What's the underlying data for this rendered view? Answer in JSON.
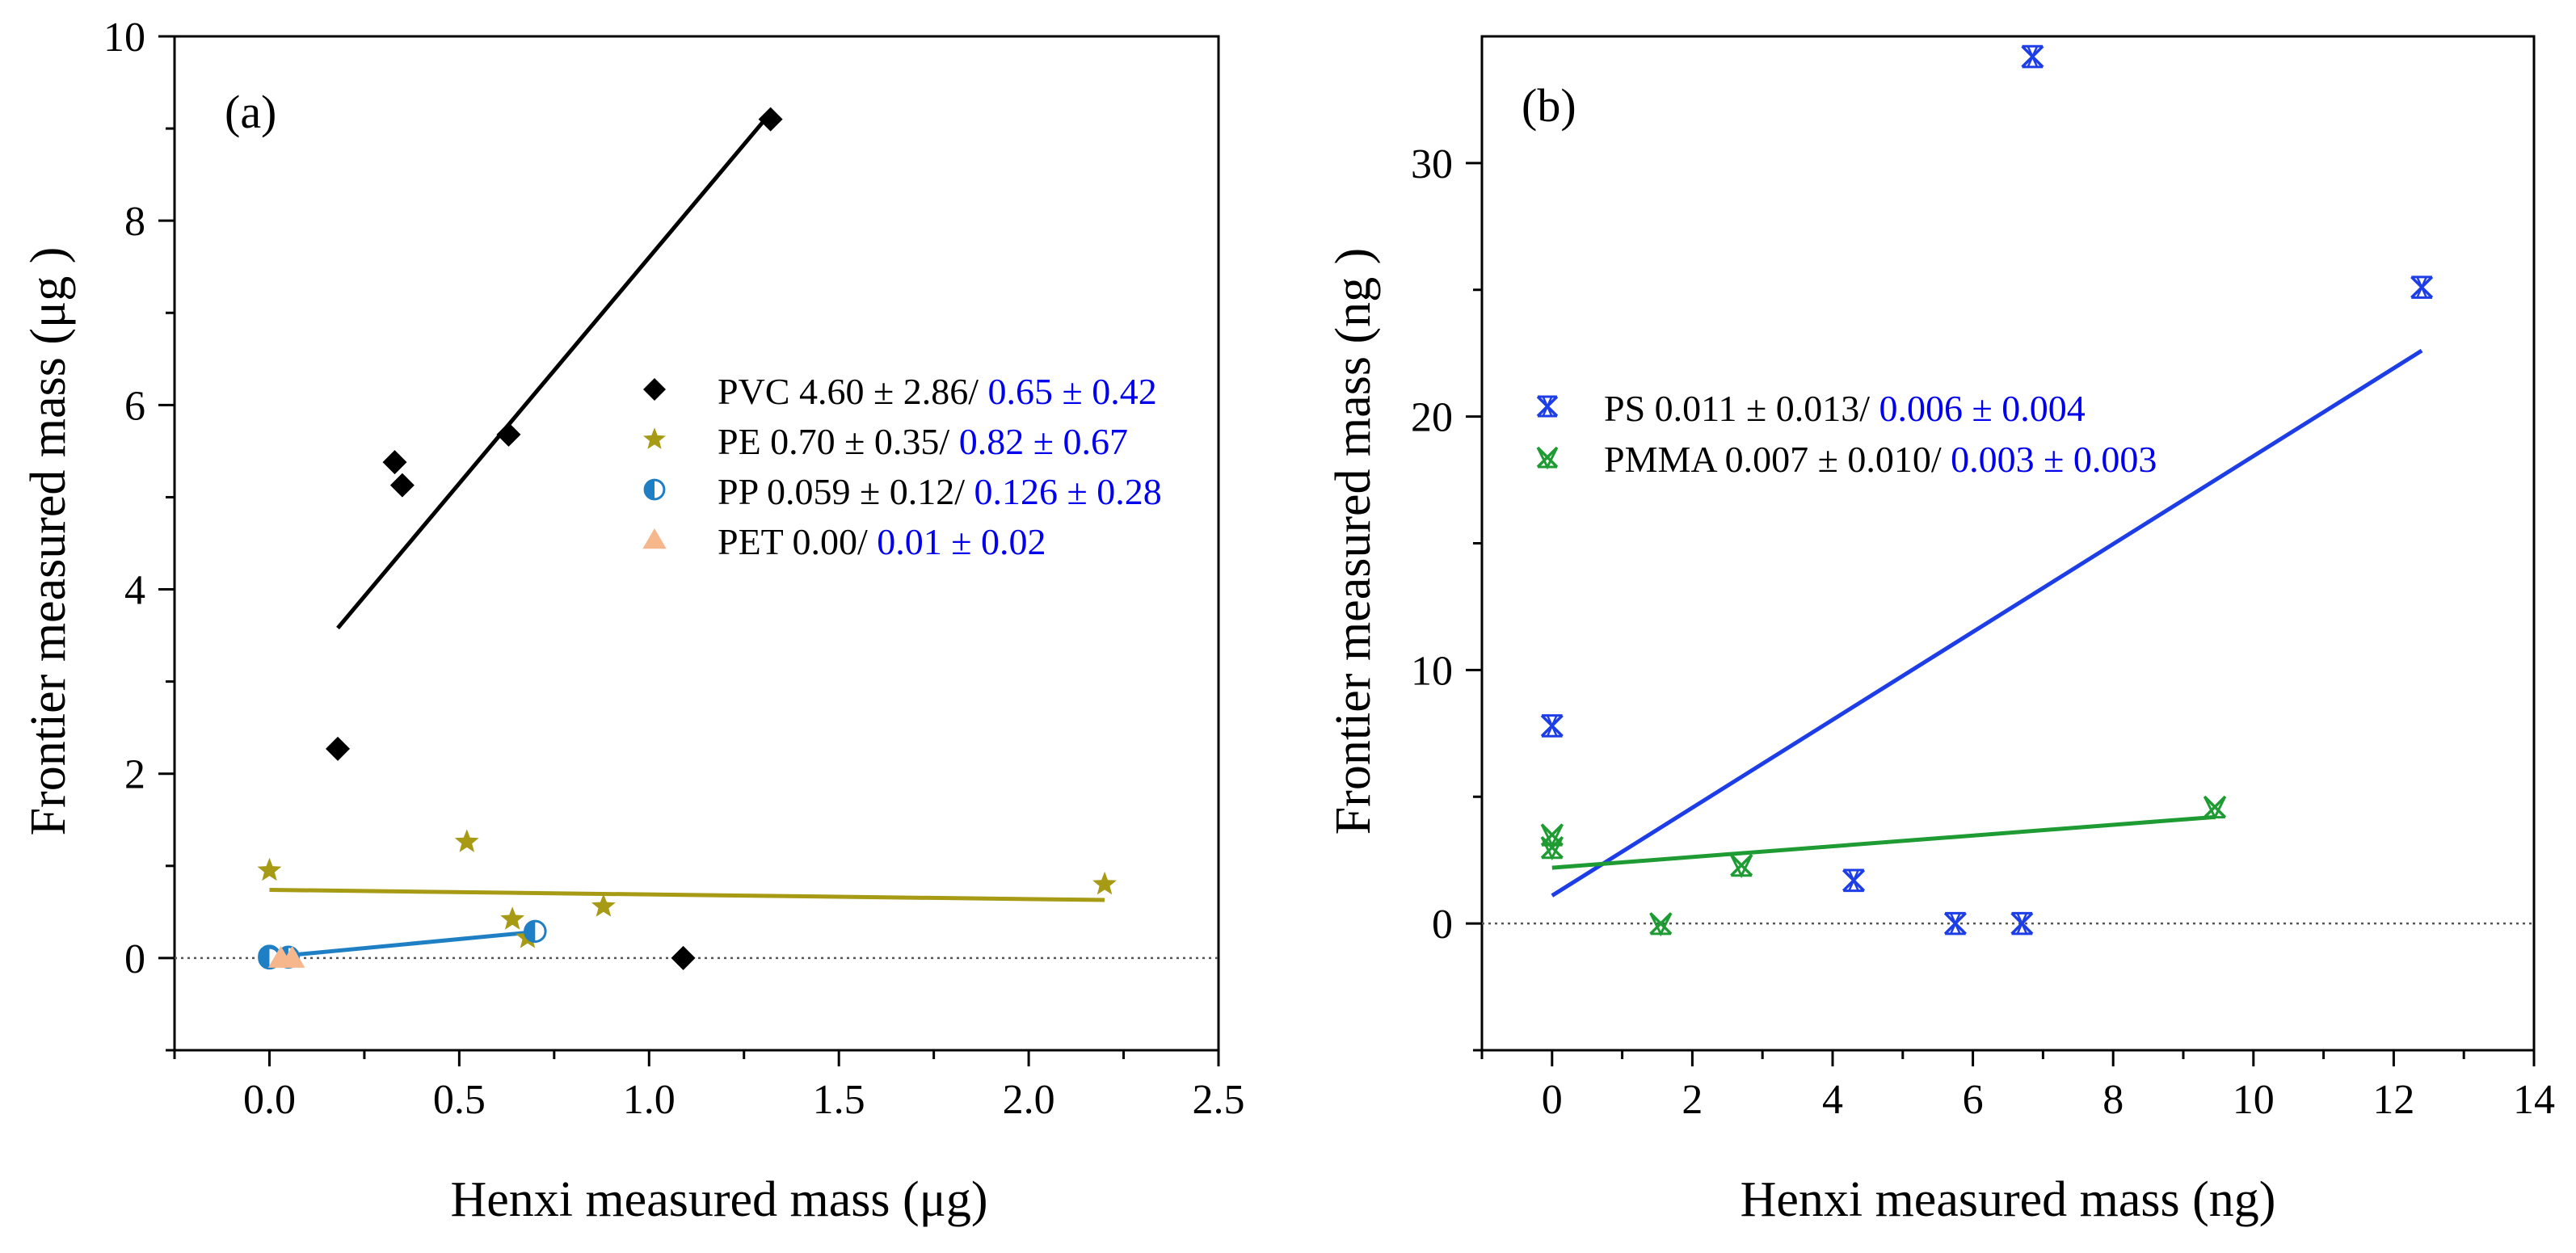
{
  "colors": {
    "black": "#000000",
    "pe": "#a79a15",
    "pp": "#1f7fc4",
    "pet": "#f6b78c",
    "ps": "#1d3ee6",
    "pmma": "#1e9b32",
    "stat": "#0000ee"
  },
  "chart_data": [
    {
      "type": "scatter",
      "panel_label": "(a)",
      "xlabel": "Henxi measured mass (μg)",
      "ylabel": "Frontier measured mass (μg )",
      "xlim": [
        -0.25,
        2.5
      ],
      "ylim": [
        -1,
        10
      ],
      "xticks": [
        0.0,
        0.5,
        1.0,
        1.5,
        2.0,
        2.5
      ],
      "xtick_labels": [
        "0.0",
        "0.5",
        "1.0",
        "1.5",
        "2.0",
        "2.5"
      ],
      "yticks": [
        0,
        2,
        4,
        6,
        8,
        10
      ],
      "ytick_labels": [
        "0",
        "2",
        "4",
        "6",
        "8",
        "10"
      ],
      "reference_line_y": 0,
      "legend_position": "center-right",
      "series": [
        {
          "name": "PVC",
          "marker": "diamond",
          "color_key": "black",
          "legend_text": "PVC 4.60 ± 2.86/",
          "legend_stat": "0.65 ± 0.42",
          "points": [
            [
              0.18,
              2.27
            ],
            [
              0.33,
              5.38
            ],
            [
              0.35,
              5.13
            ],
            [
              0.63,
              5.68
            ],
            [
              1.09,
              0.0
            ],
            [
              1.32,
              9.1
            ]
          ],
          "fit": [
            [
              0.18,
              3.58
            ],
            [
              1.32,
              9.17
            ]
          ]
        },
        {
          "name": "PE",
          "marker": "star",
          "color_key": "pe",
          "legend_text": "PE 0.70 ± 0.35/",
          "legend_stat": "0.82 ± 0.67",
          "points": [
            [
              0.0,
              0.95
            ],
            [
              0.52,
              1.26
            ],
            [
              0.64,
              0.42
            ],
            [
              0.68,
              0.22
            ],
            [
              0.88,
              0.56
            ],
            [
              2.2,
              0.8
            ]
          ],
          "fit": [
            [
              0.0,
              0.74
            ],
            [
              2.2,
              0.63
            ]
          ]
        },
        {
          "name": "PP",
          "marker": "half-circle",
          "color_key": "pp",
          "legend_text": "PP  0.059 ± 0.12/",
          "legend_stat": "0.126 ± 0.28",
          "points": [
            [
              0.0,
              0.02
            ],
            [
              0.0,
              0.0
            ],
            [
              0.05,
              0.01
            ],
            [
              0.7,
              0.29
            ]
          ],
          "fit": [
            [
              0.0,
              0.01
            ],
            [
              0.69,
              0.28
            ]
          ]
        },
        {
          "name": "PET",
          "marker": "triangle",
          "color_key": "pet",
          "legend_text": "PET 0.00/",
          "legend_stat": "0.01 ± 0.02",
          "points": [
            [
              0.03,
              0.0
            ],
            [
              0.06,
              0.0
            ]
          ]
        }
      ]
    },
    {
      "type": "scatter",
      "panel_label": "(b)",
      "xlabel": "Henxi measured mass (ng)",
      "ylabel": "Frontier measured mass (ng )",
      "xlim": [
        -1,
        14
      ],
      "ylim": [
        -5,
        35
      ],
      "xticks": [
        0,
        2,
        4,
        6,
        8,
        10,
        12,
        14
      ],
      "xtick_labels": [
        "0",
        "2",
        "4",
        "6",
        "8",
        "10",
        "12",
        "14"
      ],
      "yticks": [
        0,
        10,
        20,
        30
      ],
      "ytick_labels": [
        "0",
        "10",
        "20",
        "30"
      ],
      "reference_line_y": 0,
      "legend_position": "upper-left",
      "series": [
        {
          "name": "PS",
          "marker": "crossed-x",
          "color_key": "ps",
          "legend_text": "PS   0.011 ± 0.013/",
          "legend_stat": "0.006 ± 0.004",
          "points": [
            [
              0.0,
              7.8
            ],
            [
              4.3,
              1.7
            ],
            [
              5.75,
              0.0
            ],
            [
              6.7,
              0.0
            ],
            [
              6.85,
              34.2
            ],
            [
              12.4,
              25.1
            ]
          ],
          "fit": [
            [
              0.0,
              1.1
            ],
            [
              12.4,
              22.6
            ]
          ]
        },
        {
          "name": "PMMA",
          "marker": "crossed-v",
          "color_key": "pmma",
          "legend_text": "PMMA  0.007 ± 0.010/",
          "legend_stat": "0.003 ± 0.003",
          "points": [
            [
              0.0,
              3.5
            ],
            [
              0.0,
              3.0
            ],
            [
              1.55,
              0.0
            ],
            [
              2.7,
              2.3
            ],
            [
              9.45,
              4.6
            ]
          ],
          "fit": [
            [
              0.0,
              2.2
            ],
            [
              9.45,
              4.2
            ]
          ]
        }
      ]
    }
  ]
}
